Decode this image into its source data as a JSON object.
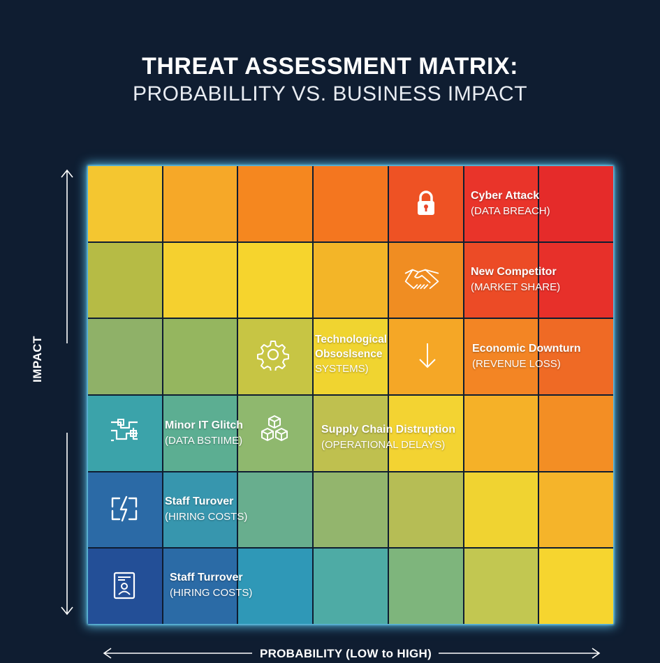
{
  "header": {
    "title": "THREAT ASSESSMENT MATRIX:",
    "subtitle": "PROBABILLITY VS. BUSINESS IMPACT"
  },
  "axes": {
    "y_label": "IMPACT",
    "x_label": "PROBABILITY (LOW to HIGH)"
  },
  "matrix": {
    "rows": 6,
    "cols": 7,
    "colors": [
      [
        "#f4c630",
        "#f6a828",
        "#f5871f",
        "#f4761f",
        "#ee5224",
        "#e9342a",
        "#e52b2a"
      ],
      [
        "#b6bb45",
        "#f5d02f",
        "#f6d42d",
        "#f3b528",
        "#f08d22",
        "#ec4b26",
        "#e7302a"
      ],
      [
        "#8fb168",
        "#95b65f",
        "#c7c544",
        "#f0d430",
        "#f5a726",
        "#f38524",
        "#ef6a25"
      ],
      [
        "#3ba3aa",
        "#5cae92",
        "#8fb86e",
        "#bfc04f",
        "#f3d332",
        "#f5b128",
        "#f38e24"
      ],
      [
        "#2b6aa6",
        "#3796ae",
        "#68ae8e",
        "#93b56d",
        "#b6bd55",
        "#f0d331",
        "#f5b42a"
      ],
      [
        "#234f97",
        "#2b6ba6",
        "#2f98b7",
        "#4eaba5",
        "#7eb57c",
        "#c2c751",
        "#f6d52f"
      ]
    ]
  },
  "risks": [
    {
      "name": "Cyber Attack",
      "sub": "(DATA BREACH)",
      "icon": "lock-icon"
    },
    {
      "name": "New Competitor",
      "sub": "(MARKET SHARE)",
      "icon": "handshake-icon"
    },
    {
      "name": "Technological\nObsoslsence",
      "sub": "SYSTEMS)",
      "icon": "gear-icon"
    },
    {
      "name": "Economic Downturn",
      "sub": "(REVENUE LOSS)",
      "icon": "down-arrow-icon"
    },
    {
      "name": "Minor IT Glitch",
      "sub": "(DATA BSTIIME)",
      "icon": "circuit-icon"
    },
    {
      "name": "Supply Chain Distruption",
      "sub": "(OPERATIONAL DELAYS)",
      "icon": "boxes-icon"
    },
    {
      "name": "Staff Turover",
      "sub": "(HIRING COSTS)",
      "icon": "lightning-icon"
    },
    {
      "name": "Staff Turrover",
      "sub": "(HIRING COSTS)",
      "icon": "id-badge-icon"
    }
  ]
}
